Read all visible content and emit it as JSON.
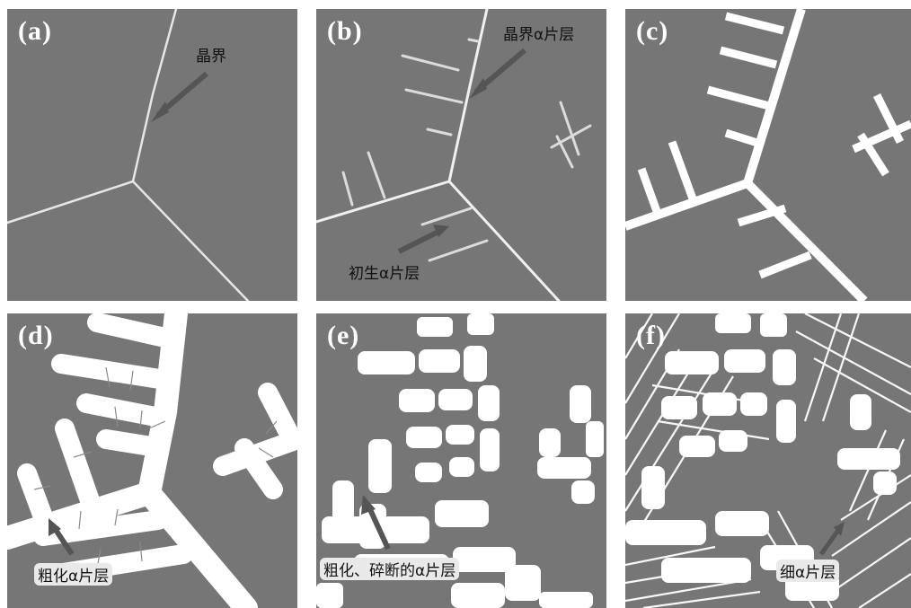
{
  "panels": [
    {
      "id": "a",
      "label": "(a)",
      "annotations": [
        "晶界"
      ]
    },
    {
      "id": "b",
      "label": "(b)",
      "annotations": [
        "晶界α片层",
        "初生α片层"
      ]
    },
    {
      "id": "c",
      "label": "(c)",
      "annotations": []
    },
    {
      "id": "d",
      "label": "(d)",
      "annotations": [
        "粗化α片层"
      ]
    },
    {
      "id": "e",
      "label": "(e)",
      "annotations": [
        "粗化、碎断的α片层"
      ]
    },
    {
      "id": "f",
      "label": "(f)",
      "annotations": [
        "细α片层"
      ]
    }
  ],
  "colors": {
    "background": "#767676",
    "feature": "#ffffff",
    "arrow": "#555555",
    "label_text": "#111111"
  }
}
